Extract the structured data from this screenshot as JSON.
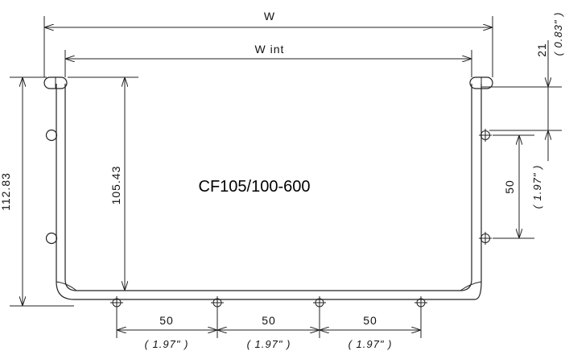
{
  "title": "CF105/100-600",
  "dims": {
    "w": "W",
    "w_int": "W int",
    "height_outer": "112.83",
    "height_inner": "105.43",
    "top_offset": "21",
    "top_offset_in": "( 0.83\" )",
    "side_pitch": "50",
    "side_pitch_in": "( 1.97\" )",
    "bottom_pitch_1": "50",
    "bottom_pitch_1_in": "( 1.97\" )",
    "bottom_pitch_2": "50",
    "bottom_pitch_2_in": "( 1.97\" )",
    "bottom_pitch_3": "50",
    "bottom_pitch_3_in": "( 1.97\" )"
  }
}
